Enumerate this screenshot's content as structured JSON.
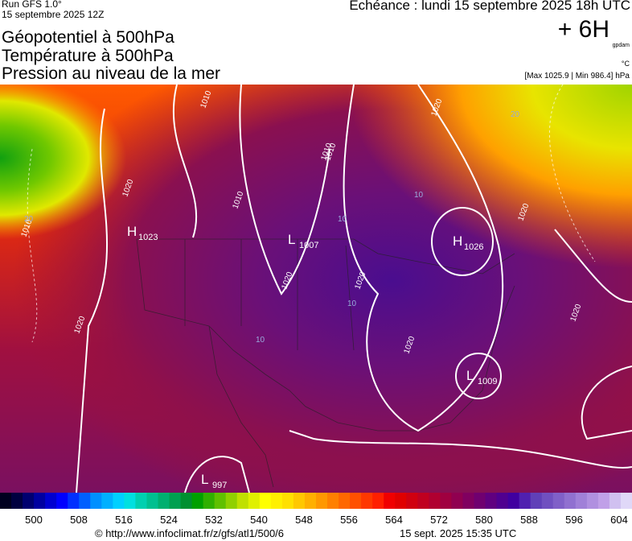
{
  "header": {
    "run": "Run GFS 1.0°",
    "run_date": "15 septembre 2025 12Z",
    "valid": "Echéance : lundi 15 septembre 2025 18h UTC",
    "titles": [
      "Géopotentiel à 500hPa",
      "Température à 500hPa",
      "Pression au niveau de la mer"
    ],
    "lead": "+ 6H",
    "unit_geo": "gpdam",
    "unit_temp": "°C",
    "extremes": "[Max 1025.9 | Min 986.4] hPa"
  },
  "map": {
    "centers": [
      {
        "letter": "H",
        "value": "1023"
      },
      {
        "letter": "L",
        "value": "1007"
      },
      {
        "letter": "H",
        "value": "1026"
      },
      {
        "letter": "L",
        "value": "1009"
      },
      {
        "letter": "L",
        "value": "997"
      }
    ],
    "isobar_labels": [
      "1010",
      "1020",
      "1010",
      "1010",
      "1010",
      "1020",
      "1020",
      "1020",
      "1020",
      "1020",
      "1020",
      "1020",
      "1010"
    ],
    "temp_labels": [
      "20",
      "20",
      "10",
      "10",
      "10",
      "10"
    ]
  },
  "legend": {
    "ticks": [
      500,
      508,
      516,
      524,
      532,
      540,
      548,
      556,
      564,
      572,
      580,
      588,
      596,
      604
    ],
    "colors": [
      "#000020",
      "#000040",
      "#000070",
      "#0000a0",
      "#0000d0",
      "#0000ff",
      "#0030ff",
      "#0060ff",
      "#0090ff",
      "#00b0ff",
      "#00d0ff",
      "#00e0e0",
      "#00d0b0",
      "#00c090",
      "#00b070",
      "#00a050",
      "#009030",
      "#00a000",
      "#30b000",
      "#60c000",
      "#90d000",
      "#c0e000",
      "#e0f000",
      "#ffff00",
      "#fff000",
      "#ffe000",
      "#ffc800",
      "#ffb000",
      "#ff9800",
      "#ff8000",
      "#ff6800",
      "#ff5000",
      "#ff3800",
      "#ff2000",
      "#f00000",
      "#e00000",
      "#d00010",
      "#c00020",
      "#b00030",
      "#a00040",
      "#900050",
      "#800060",
      "#700070",
      "#600080",
      "#500090",
      "#4000a0",
      "#5020b0",
      "#6040b8",
      "#7050c0",
      "#8060c8",
      "#9070d0",
      "#a080d8",
      "#b090e0",
      "#c0a0e8",
      "#d0c0f0",
      "#e0d8f8"
    ]
  },
  "footer": {
    "url": "© http://www.infoclimat.fr/z/gfs/atl1/500/6",
    "generated": "15 sept. 2025 15:35 UTC"
  }
}
